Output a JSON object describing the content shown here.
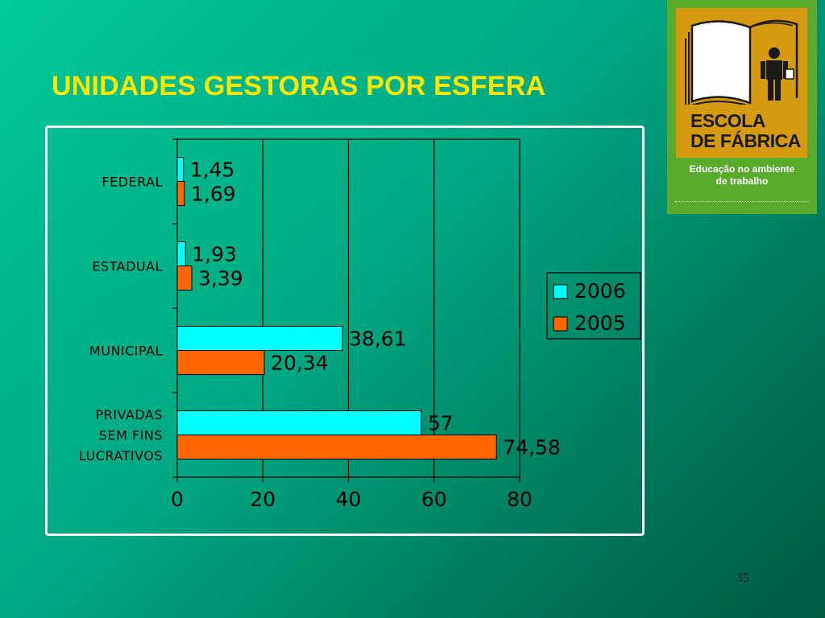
{
  "slide": {
    "title": "UNIDADES GESTORAS POR ESFERA",
    "page_number": "35"
  },
  "logo": {
    "name_line1": "ESCOLA",
    "name_line2": "DE FÁBRICA",
    "tagline_line1": "Educação no ambiente",
    "tagline_line2": "de trabalho",
    "icon": "open-book-and-worker-icon",
    "colors": {
      "background": "#5aaa2e",
      "panel": "#d59a10"
    }
  },
  "chart_data": {
    "type": "bar",
    "orientation": "horizontal",
    "categories": [
      [
        "FEDERAL"
      ],
      [
        "ESTADUAL"
      ],
      [
        "MUNICIPAL"
      ],
      [
        "PRIVADAS",
        "SEM FINS",
        "LUCRATIVOS"
      ]
    ],
    "series": [
      {
        "name": "2006",
        "values": [
          1.45,
          1.93,
          38.61,
          57
        ],
        "labels": [
          "1,45",
          "1,93",
          "38,61",
          "57"
        ],
        "color": "#00ffff"
      },
      {
        "name": "2005",
        "values": [
          1.69,
          3.39,
          20.34,
          74.58
        ],
        "labels": [
          "1,69",
          "3,39",
          "20,34",
          "74,58"
        ],
        "color": "#ff6600"
      }
    ],
    "xlim": [
      0,
      80
    ],
    "xticks": [
      "0",
      "20",
      "40",
      "60",
      "80"
    ],
    "grid": "vertical",
    "legend": "right",
    "title": "",
    "xlabel": "",
    "ylabel": ""
  }
}
